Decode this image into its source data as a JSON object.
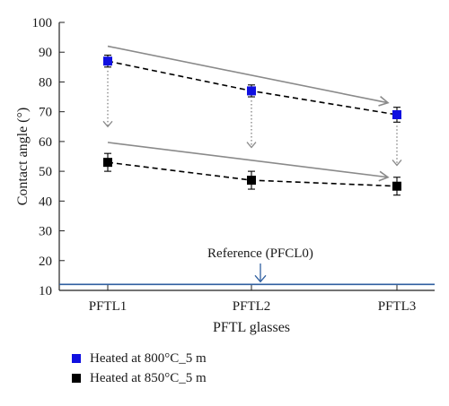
{
  "chart_data": {
    "type": "line",
    "categories": [
      "PFTL1",
      "PFTL2",
      "PFTL3"
    ],
    "series": [
      {
        "name": "Heated at 800°C_5 m",
        "values": [
          87,
          77,
          69
        ],
        "errors": [
          2,
          2,
          2.5
        ],
        "color": "#1010e0"
      },
      {
        "name": "Heated at 850°C_5 m",
        "values": [
          53,
          47,
          45
        ],
        "errors": [
          3,
          3,
          3
        ],
        "color": "#000000"
      }
    ],
    "reference": {
      "label": "Reference (PFCL0)",
      "value": 12,
      "color": "#2f5fa0"
    },
    "xlabel": "PFTL glasses",
    "ylabel": "Contact angle (°)",
    "ylim": [
      10,
      100
    ],
    "yticks": [
      10,
      20,
      30,
      40,
      50,
      60,
      70,
      80,
      90,
      100
    ],
    "grid": false,
    "legend_placement": "bottom-left",
    "trend_arrow_color": "#8a8a8a",
    "drop_arrow_color": "#8a8a8a"
  }
}
